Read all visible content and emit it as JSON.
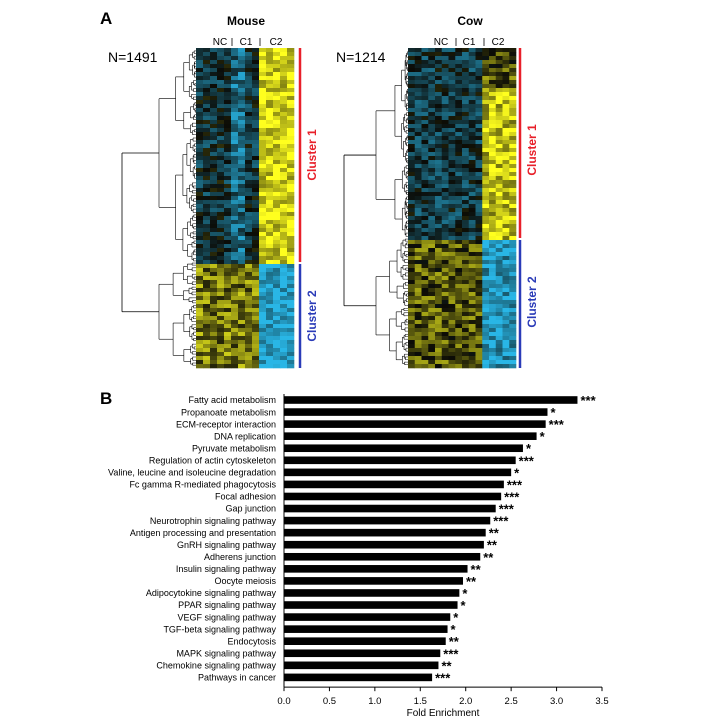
{
  "panel_a": {
    "letter": "A",
    "heatmaps": [
      {
        "title": "Mouse",
        "n_label": "N=1491",
        "groups": [
          "NC",
          "C1",
          "C2"
        ],
        "clusters": [
          {
            "label": "Cluster 1",
            "color": "#e8202a"
          },
          {
            "label": "Cluster 2",
            "color": "#2a3bb8"
          }
        ]
      },
      {
        "title": "Cow",
        "n_label": "N=1214",
        "groups": [
          "NC",
          "C1",
          "C2"
        ],
        "clusters": [
          {
            "label": "Cluster 1",
            "color": "#e8202a"
          },
          {
            "label": "Cluster 2",
            "color": "#2a3bb8"
          }
        ]
      }
    ],
    "colors": {
      "low": "#29b6e6",
      "mid": "#0b0b06",
      "high": "#ffff1e"
    }
  },
  "panel_b": {
    "letter": "B"
  },
  "chart_data": {
    "type": "bar",
    "orientation": "horizontal",
    "categories": [
      "Fatty acid metabolism",
      "Propanoate metabolism",
      "ECM-receptor interaction",
      "DNA replication",
      "Pyruvate metabolism",
      "Regulation of actin cytoskeleton",
      "Valine, leucine and isoleucine degradation",
      "Fc gamma R-mediated phagocytosis",
      "Focal adhesion",
      "Gap junction",
      "Neurotrophin signaling pathway",
      "Antigen processing and presentation",
      "GnRH signaling pathway",
      "Adherens junction",
      "Insulin signaling pathway",
      "Oocyte meiosis",
      "Adipocytokine signaling pathway",
      "PPAR signaling pathway",
      "VEGF signaling pathway",
      "TGF-beta signaling pathway",
      "Endocytosis",
      "MAPK signaling pathway",
      "Chemokine signaling pathway",
      "Pathways in cancer"
    ],
    "values": [
      3.23,
      2.9,
      2.88,
      2.78,
      2.63,
      2.55,
      2.5,
      2.42,
      2.39,
      2.33,
      2.27,
      2.22,
      2.2,
      2.16,
      2.02,
      1.97,
      1.93,
      1.91,
      1.83,
      1.8,
      1.78,
      1.72,
      1.7,
      1.63
    ],
    "significance": [
      "***",
      "*",
      "***",
      "*",
      "*",
      "***",
      "*",
      "***",
      "***",
      "***",
      "***",
      "**",
      "**",
      "**",
      "**",
      "**",
      "*",
      "*",
      "*",
      "*",
      "**",
      "***",
      "**",
      "***"
    ],
    "xlabel": "Fold Enrichment",
    "xlim": [
      0,
      3.5
    ],
    "xticks": [
      "0.0",
      "0.5",
      "1.0",
      "1.5",
      "2.0",
      "2.5",
      "3.0",
      "3.5"
    ],
    "bar_color": "#000000"
  }
}
